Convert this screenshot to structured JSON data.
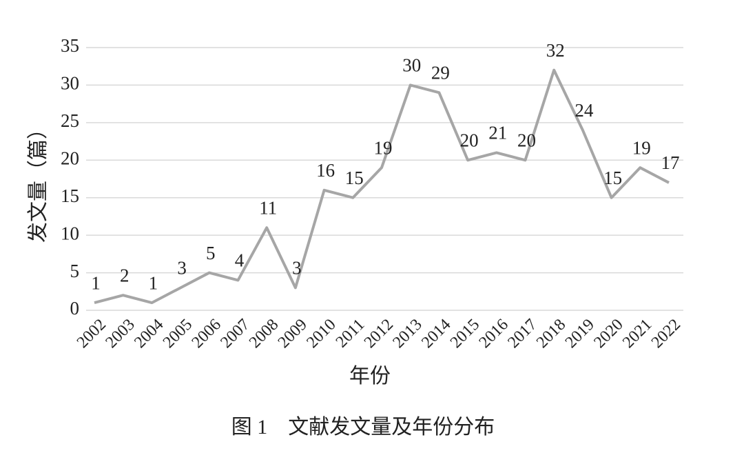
{
  "chart_data": {
    "type": "line",
    "caption": "图 1　文献发文量及年份分布",
    "x_label": "年份",
    "y_label": "发文量（篇）",
    "categories": [
      "2002",
      "2003",
      "2004",
      "2005",
      "2006",
      "2007",
      "2008",
      "2009",
      "2010",
      "2011",
      "2012",
      "2013",
      "2014",
      "2015",
      "2016",
      "2017",
      "2018",
      "2019",
      "2020",
      "2021",
      "2022"
    ],
    "values": [
      1,
      2,
      1,
      3,
      5,
      4,
      11,
      3,
      16,
      15,
      19,
      30,
      29,
      20,
      21,
      20,
      32,
      24,
      15,
      19,
      17
    ],
    "color": "#a6a6a6",
    "ylim": [
      0,
      35
    ],
    "yticks": [
      0,
      5,
      10,
      15,
      20,
      25,
      30,
      35
    ],
    "grid": true
  }
}
